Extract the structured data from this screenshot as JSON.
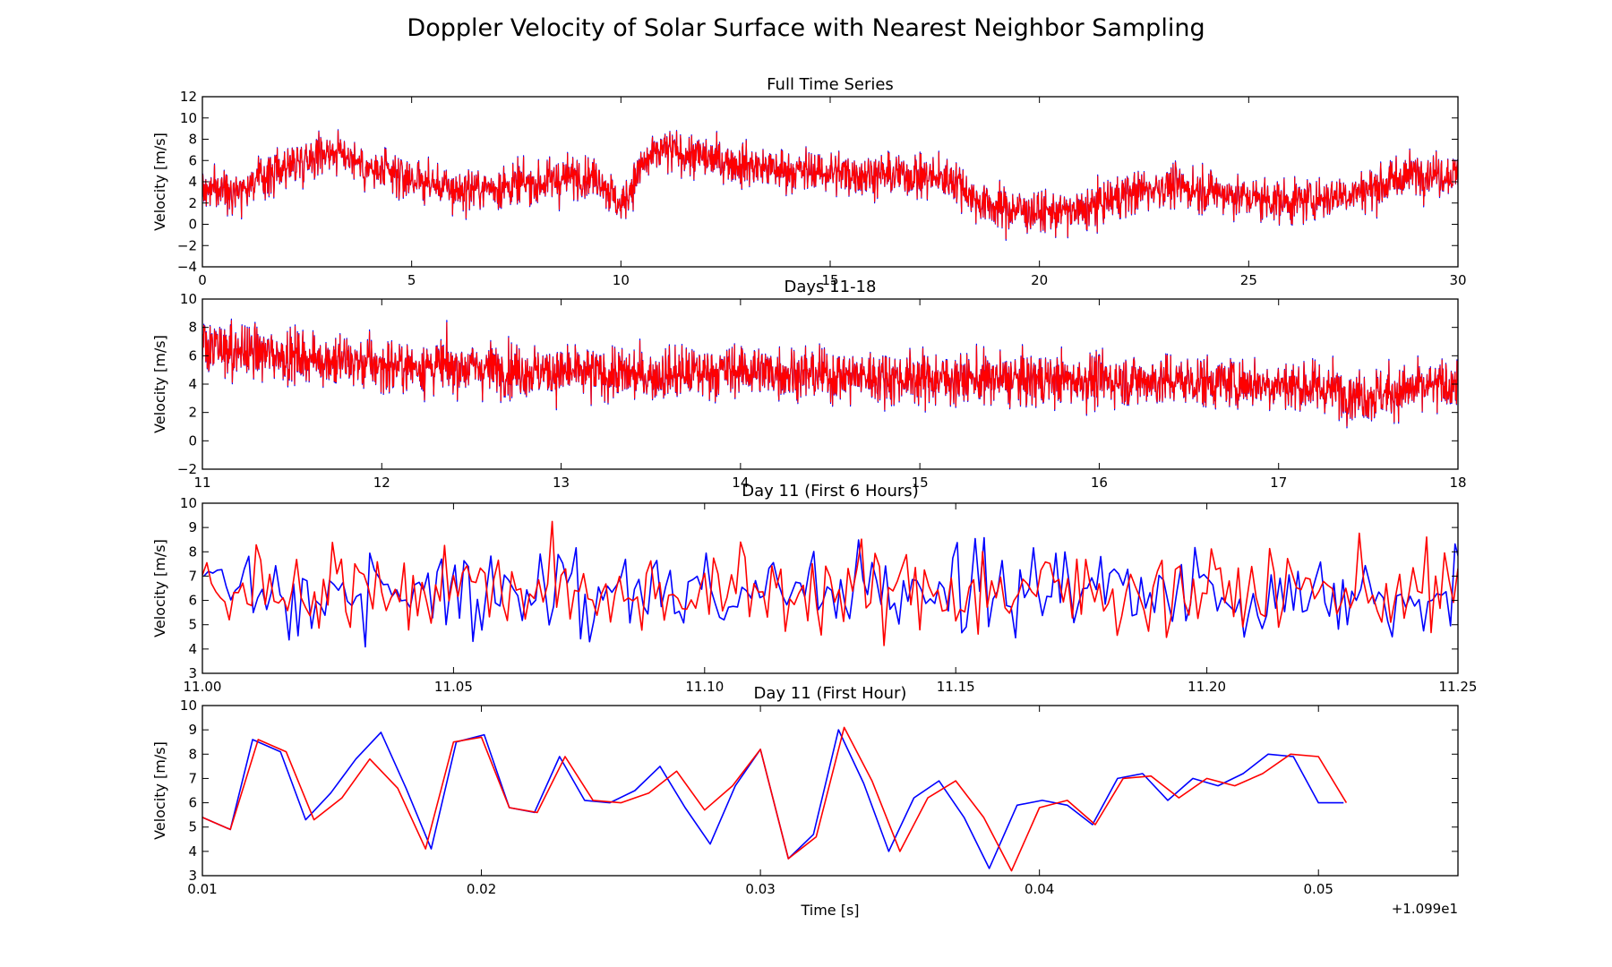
{
  "figure": {
    "suptitle": "Doppler Velocity of Solar Surface with Nearest Neighbor Sampling",
    "series_colors": {
      "original": "#0000ff",
      "resampled": "#ff0000"
    }
  },
  "chart_data": [
    {
      "type": "line",
      "title": "Full Time Series",
      "xlabel": "",
      "ylabel": "Velocity [m/s]",
      "xlim": [
        0,
        30
      ],
      "ylim": [
        -4,
        12
      ],
      "xticks": [
        0,
        5,
        10,
        15,
        20,
        25,
        30
      ],
      "xtick_labels": [
        "0",
        "5",
        "10",
        "15",
        "20",
        "25",
        "30"
      ],
      "yticks": [
        -4,
        -2,
        0,
        2,
        4,
        6,
        8,
        10,
        12
      ],
      "ytick_labels": [
        "−4",
        "−2",
        "0",
        "2",
        "4",
        "6",
        "8",
        "10",
        "12"
      ],
      "offset_label": "",
      "series": [
        {
          "color": "#0000ff",
          "x": [
            0,
            1,
            2,
            3,
            3.5,
            4,
            5,
            6,
            7,
            8,
            9,
            9.5,
            10,
            10.5,
            11,
            12,
            13,
            14,
            15,
            16,
            17,
            18,
            18.5,
            19,
            20,
            21,
            22,
            23,
            24,
            25,
            26,
            27,
            28,
            29,
            30
          ],
          "y": [
            3.2,
            3.5,
            5.5,
            7.0,
            6.5,
            5.0,
            4.3,
            3.2,
            3.5,
            3.8,
            4.6,
            4.4,
            1.6,
            5.5,
            7.0,
            6.2,
            5.6,
            5.0,
            4.9,
            4.7,
            4.6,
            4.2,
            2.2,
            1.6,
            1.1,
            1.2,
            2.8,
            3.6,
            3.2,
            2.5,
            2.1,
            2.6,
            3.4,
            4.9,
            4.6
          ]
        },
        {
          "color": "#ff0000",
          "x": [
            0,
            1,
            2,
            3,
            3.5,
            4,
            5,
            6,
            7,
            8,
            9,
            9.5,
            10,
            10.5,
            11,
            12,
            13,
            14,
            15,
            16,
            17,
            18,
            18.5,
            19,
            20,
            21,
            22,
            23,
            24,
            25,
            26,
            27,
            28,
            29,
            30
          ],
          "y": [
            3.2,
            3.5,
            5.5,
            7.0,
            6.5,
            5.0,
            4.3,
            3.2,
            3.5,
            3.8,
            4.6,
            4.4,
            1.6,
            5.5,
            7.0,
            6.2,
            5.6,
            5.0,
            4.9,
            4.7,
            4.6,
            4.2,
            2.2,
            1.6,
            1.1,
            1.2,
            2.8,
            3.6,
            3.2,
            2.5,
            2.1,
            2.6,
            3.4,
            4.9,
            4.6
          ]
        }
      ]
    },
    {
      "type": "line",
      "title": "Days 11-18",
      "xlabel": "",
      "ylabel": "Velocity [m/s]",
      "xlim": [
        11,
        18
      ],
      "ylim": [
        -2,
        10
      ],
      "xticks": [
        11,
        12,
        13,
        14,
        15,
        16,
        17,
        18
      ],
      "xtick_labels": [
        "11",
        "12",
        "13",
        "14",
        "15",
        "16",
        "17",
        "18"
      ],
      "yticks": [
        -2,
        0,
        2,
        4,
        6,
        8,
        10
      ],
      "ytick_labels": [
        "−2",
        "0",
        "2",
        "4",
        "6",
        "8",
        "10"
      ],
      "offset_label": "",
      "series": [
        {
          "color": "#0000ff",
          "x": [
            11,
            11.5,
            12,
            12.5,
            13,
            13.5,
            14,
            14.5,
            15,
            15.5,
            16,
            16.5,
            17,
            17.3,
            17.5,
            18
          ],
          "y": [
            6.5,
            6.0,
            5.3,
            5.2,
            4.8,
            4.6,
            5.0,
            4.6,
            4.4,
            4.3,
            4.3,
            4.2,
            4.0,
            3.6,
            3.2,
            4.0
          ]
        },
        {
          "color": "#ff0000",
          "x": [
            11,
            11.5,
            12,
            12.5,
            13,
            13.5,
            14,
            14.5,
            15,
            15.5,
            16,
            16.5,
            17,
            17.3,
            17.5,
            18
          ],
          "y": [
            6.5,
            6.0,
            5.3,
            5.2,
            4.8,
            4.6,
            5.0,
            4.6,
            4.4,
            4.3,
            4.3,
            4.2,
            4.0,
            3.6,
            3.2,
            4.0
          ]
        }
      ]
    },
    {
      "type": "line",
      "title": "Day 11 (First 6 Hours)",
      "xlabel": "",
      "ylabel": "Velocity [m/s]",
      "xlim": [
        11.0,
        11.25
      ],
      "ylim": [
        3,
        10
      ],
      "xticks": [
        11.0,
        11.05,
        11.1,
        11.15,
        11.2,
        11.25
      ],
      "xtick_labels": [
        "11.00",
        "11.05",
        "11.10",
        "11.15",
        "11.20",
        "11.25"
      ],
      "yticks": [
        3,
        4,
        5,
        6,
        7,
        8,
        9,
        10
      ],
      "ytick_labels": [
        "3",
        "4",
        "5",
        "6",
        "7",
        "8",
        "9",
        "10"
      ],
      "offset_label": "",
      "series": [
        {
          "color": "#0000ff",
          "x": [],
          "y": []
        },
        {
          "color": "#ff0000",
          "x": [],
          "y": []
        }
      ]
    },
    {
      "type": "line",
      "title": "Day 11 (First Hour)",
      "xlabel": "Time [s]",
      "ylabel": "Velocity [m/s]",
      "xlim": [
        0.01,
        0.055
      ],
      "ylim": [
        3,
        10
      ],
      "xticks": [
        0.01,
        0.02,
        0.03,
        0.04,
        0.05
      ],
      "xtick_labels": [
        "0.01",
        "0.02",
        "0.03",
        "0.04",
        "0.05"
      ],
      "yticks": [
        3,
        4,
        5,
        6,
        7,
        8,
        9,
        10
      ],
      "ytick_labels": [
        "3",
        "4",
        "5",
        "6",
        "7",
        "8",
        "9",
        "10"
      ],
      "offset_label": "+1.099e1",
      "series": [
        {
          "color": "#0000ff",
          "x": [
            0.01,
            0.011,
            0.0118,
            0.0128,
            0.0137,
            0.0146,
            0.0155,
            0.0164,
            0.0173,
            0.0182,
            0.0191,
            0.0201,
            0.021,
            0.0219,
            0.0228,
            0.0237,
            0.0246,
            0.0255,
            0.0264,
            0.0273,
            0.0282,
            0.0291,
            0.03,
            0.031,
            0.0319,
            0.0328,
            0.0337,
            0.0346,
            0.0355,
            0.0364,
            0.0373,
            0.0382,
            0.0392,
            0.0401,
            0.041,
            0.0419,
            0.0428,
            0.0437,
            0.0446,
            0.0455,
            0.0464,
            0.0473,
            0.0482,
            0.0491,
            0.05,
            0.0509
          ],
          "y": [
            5.4,
            4.9,
            8.6,
            8.1,
            5.3,
            6.4,
            7.8,
            8.9,
            6.6,
            4.1,
            8.5,
            8.8,
            5.8,
            5.6,
            7.9,
            6.1,
            6.0,
            6.5,
            7.5,
            5.8,
            4.3,
            6.7,
            8.2,
            3.7,
            4.7,
            9.0,
            6.8,
            4.0,
            6.2,
            6.9,
            5.4,
            3.3,
            5.9,
            6.1,
            5.9,
            5.1,
            7.0,
            7.2,
            6.1,
            7.0,
            6.7,
            7.2,
            8.0,
            7.9,
            6.0,
            6.0
          ]
        },
        {
          "color": "#ff0000",
          "x": [
            0.01,
            0.011,
            0.012,
            0.013,
            0.014,
            0.015,
            0.016,
            0.017,
            0.018,
            0.019,
            0.02,
            0.021,
            0.022,
            0.023,
            0.024,
            0.025,
            0.026,
            0.027,
            0.028,
            0.029,
            0.03,
            0.031,
            0.032,
            0.033,
            0.034,
            0.035,
            0.036,
            0.037,
            0.038,
            0.039,
            0.04,
            0.041,
            0.042,
            0.043,
            0.044,
            0.045,
            0.046,
            0.047,
            0.048,
            0.049,
            0.05,
            0.051
          ],
          "y": [
            5.4,
            4.9,
            8.6,
            8.1,
            5.3,
            6.2,
            7.8,
            6.6,
            4.1,
            8.5,
            8.7,
            5.8,
            5.6,
            7.9,
            6.1,
            6.0,
            6.4,
            7.3,
            5.7,
            6.7,
            8.2,
            3.7,
            4.6,
            9.1,
            6.9,
            4.0,
            6.2,
            6.9,
            5.4,
            3.2,
            5.8,
            6.1,
            5.1,
            7.0,
            7.1,
            6.2,
            7.0,
            6.7,
            7.2,
            8.0,
            7.9,
            6.0
          ]
        }
      ]
    }
  ]
}
